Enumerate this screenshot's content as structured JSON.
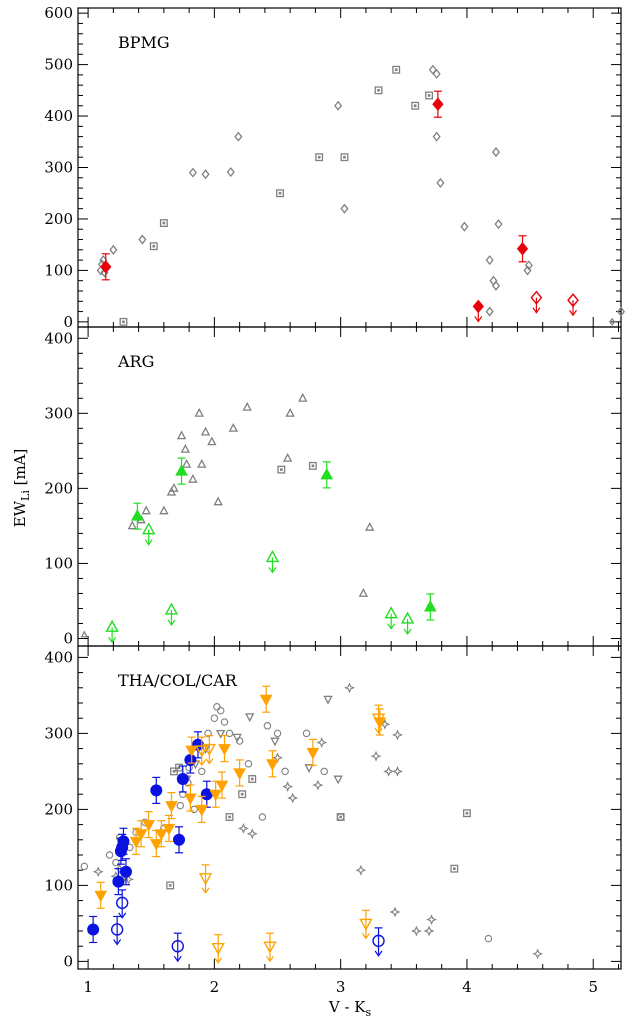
{
  "chart_data": {
    "type": "scatter",
    "xlabel": "V - K",
    "xlabel_sub": "s",
    "ylabel": "EW",
    "ylabel_sub": "Li",
    "ylabel_unit": " [mA]",
    "xlim": [
      0.92,
      5.22
    ],
    "x_ticks": [
      1,
      2,
      3,
      4,
      5
    ],
    "x_tick_labels": [
      "1",
      "2",
      "3",
      "4",
      "5"
    ],
    "grid": false,
    "colors": {
      "gray": "#808080",
      "red": "#e8000b",
      "green": "#22dd22",
      "orange": "#ffa200",
      "blue": "#0a12e0",
      "frame": "#000000"
    },
    "panels": [
      {
        "label": "BPMG",
        "ylim": [
          -10,
          610
        ],
        "y_ticks": [
          0,
          100,
          200,
          300,
          400,
          500,
          600
        ],
        "y_tick_labels": [
          "0",
          "100",
          "200",
          "300",
          "400",
          "500",
          "600"
        ],
        "series": [
          {
            "marker": "open-diamond",
            "color": "gray",
            "points": [
              [
                1.1,
                100
              ],
              [
                1.11,
                112
              ],
              [
                1.12,
                120
              ],
              [
                1.13,
                96
              ],
              [
                1.2,
                140
              ],
              [
                1.43,
                160
              ],
              [
                1.83,
                290
              ],
              [
                1.93,
                287
              ],
              [
                2.13,
                291
              ],
              [
                2.19,
                360
              ],
              [
                2.98,
                420
              ],
              [
                3.03,
                220
              ],
              [
                3.73,
                490
              ],
              [
                3.76,
                360
              ],
              [
                3.76,
                482
              ],
              [
                3.79,
                270
              ],
              [
                3.98,
                185
              ],
              [
                4.18,
                120
              ],
              [
                4.18,
                20
              ],
              [
                4.21,
                80
              ],
              [
                4.23,
                70
              ],
              [
                4.23,
                330
              ],
              [
                4.25,
                190
              ],
              [
                4.48,
                100
              ],
              [
                4.49,
                110
              ],
              [
                5.22,
                20
              ]
            ]
          },
          {
            "marker": "open-square-dot",
            "color": "gray",
            "points": [
              [
                1.28,
                0
              ],
              [
                1.52,
                147
              ],
              [
                1.6,
                192
              ],
              [
                2.52,
                250
              ],
              [
                2.83,
                320
              ],
              [
                3.03,
                320
              ],
              [
                3.3,
                450
              ],
              [
                3.44,
                490
              ],
              [
                3.59,
                420
              ],
              [
                3.7,
                440
              ]
            ]
          },
          {
            "marker": "open-diamond-small",
            "color": "gray",
            "points": [
              [
                5.15,
                0
              ]
            ]
          },
          {
            "marker": "filled-diamond",
            "color": "red",
            "error": true,
            "points": [
              [
                1.14,
                107
              ],
              [
                3.77,
                423
              ],
              [
                4.44,
                142
              ]
            ]
          },
          {
            "marker": "filled-diamond",
            "color": "red",
            "upper_limit": true,
            "points": [
              [
                4.09,
                30
              ]
            ]
          },
          {
            "marker": "open-diamond",
            "color": "red",
            "upper_limit": true,
            "points": [
              [
                4.55,
                47
              ],
              [
                4.84,
                42
              ]
            ]
          }
        ]
      },
      {
        "label": "ARG",
        "ylim": [
          -10,
          415
        ],
        "y_ticks": [
          0,
          100,
          200,
          300,
          400
        ],
        "y_tick_labels": [
          "0",
          "100",
          "200",
          "300",
          "400"
        ],
        "series": [
          {
            "marker": "open-triangle",
            "color": "gray",
            "points": [
              [
                1.35,
                150
              ],
              [
                1.42,
                158
              ],
              [
                1.46,
                170
              ],
              [
                1.6,
                170
              ],
              [
                1.66,
                195
              ],
              [
                1.68,
                200
              ],
              [
                1.74,
                270
              ],
              [
                1.77,
                252
              ],
              [
                1.78,
                232
              ],
              [
                1.83,
                212
              ],
              [
                1.88,
                300
              ],
              [
                1.9,
                232
              ],
              [
                1.93,
                275
              ],
              [
                1.98,
                262
              ],
              [
                2.03,
                182
              ],
              [
                2.15,
                280
              ],
              [
                2.26,
                308
              ],
              [
                2.58,
                240
              ],
              [
                2.6,
                300
              ],
              [
                2.7,
                320
              ],
              [
                3.18,
                60
              ],
              [
                3.23,
                148
              ]
            ]
          },
          {
            "marker": "open-square-dot",
            "color": "gray",
            "points": [
              [
                2.53,
                225
              ],
              [
                2.78,
                230
              ]
            ]
          },
          {
            "marker": "open-triangle-small",
            "color": "gray",
            "points": [
              [
                0.97,
                5
              ]
            ]
          },
          {
            "marker": "filled-triangle",
            "color": "green",
            "error": true,
            "points": [
              [
                1.39,
                163
              ],
              [
                1.74,
                223
              ],
              [
                2.89,
                218
              ],
              [
                3.71,
                42
              ]
            ]
          },
          {
            "marker": "open-triangle",
            "color": "green",
            "upper_limit": true,
            "points": [
              [
                1.19,
                15
              ],
              [
                1.48,
                145
              ],
              [
                1.66,
                38
              ],
              [
                2.46,
                108
              ],
              [
                3.4,
                33
              ],
              [
                3.53,
                26
              ]
            ]
          }
        ]
      },
      {
        "label": "THA/COL/CAR",
        "ylim": [
          -10,
          415
        ],
        "y_ticks": [
          0,
          100,
          200,
          300,
          400
        ],
        "y_tick_labels": [
          "0",
          "100",
          "200",
          "300",
          "400"
        ],
        "series": [
          {
            "marker": "open-circle",
            "color": "gray",
            "points": [
              [
                0.97,
                125
              ],
              [
                1.17,
                140
              ],
              [
                1.22,
                130
              ],
              [
                1.25,
                163
              ],
              [
                1.33,
                150
              ],
              [
                1.38,
                170
              ],
              [
                1.45,
                183
              ],
              [
                1.6,
                175
              ],
              [
                1.73,
                205
              ],
              [
                1.75,
                220
              ],
              [
                1.79,
                235
              ],
              [
                1.8,
                255
              ],
              [
                1.84,
                200
              ],
              [
                1.9,
                250
              ],
              [
                1.95,
                300
              ],
              [
                2.0,
                320
              ],
              [
                2.02,
                335
              ],
              [
                2.05,
                330
              ],
              [
                2.08,
                315
              ],
              [
                2.12,
                300
              ],
              [
                2.2,
                290
              ],
              [
                2.27,
                260
              ],
              [
                2.38,
                190
              ],
              [
                2.42,
                310
              ],
              [
                2.5,
                300
              ],
              [
                2.56,
                250
              ],
              [
                2.73,
                300
              ],
              [
                2.87,
                250
              ],
              [
                3.0,
                190
              ],
              [
                4.17,
                30
              ]
            ]
          },
          {
            "marker": "open-triangle-down",
            "color": "gray",
            "points": [
              [
                1.78,
                240
              ],
              [
                1.85,
                260
              ],
              [
                1.93,
                280
              ],
              [
                2.05,
                300
              ],
              [
                2.18,
                295
              ],
              [
                2.28,
                322
              ],
              [
                2.48,
                290
              ],
              [
                2.75,
                255
              ],
              [
                2.9,
                345
              ],
              [
                2.98,
                240
              ]
            ]
          },
          {
            "marker": "star4",
            "color": "gray",
            "points": [
              [
                1.08,
                118
              ],
              [
                1.22,
                112
              ],
              [
                1.25,
                122
              ],
              [
                1.28,
                108
              ],
              [
                1.32,
                108
              ],
              [
                2.23,
                175
              ],
              [
                2.3,
                168
              ],
              [
                2.5,
                268
              ],
              [
                2.58,
                230
              ],
              [
                2.62,
                215
              ],
              [
                2.82,
                232
              ],
              [
                2.85,
                288
              ],
              [
                3.07,
                360
              ],
              [
                3.16,
                120
              ],
              [
                3.28,
                270
              ],
              [
                3.35,
                312
              ],
              [
                3.38,
                250
              ],
              [
                3.43,
                65
              ],
              [
                3.45,
                298
              ],
              [
                3.45,
                250
              ],
              [
                3.6,
                40
              ],
              [
                3.7,
                40
              ],
              [
                3.72,
                55
              ],
              [
                4.56,
                10
              ]
            ]
          },
          {
            "marker": "open-square-dot",
            "color": "gray",
            "points": [
              [
                1.65,
                100
              ],
              [
                1.68,
                250
              ],
              [
                1.72,
                255
              ],
              [
                2.12,
                190
              ],
              [
                2.22,
                220
              ],
              [
                2.3,
                240
              ],
              [
                3.0,
                190
              ],
              [
                3.9,
                122
              ],
              [
                4.0,
                195
              ]
            ]
          },
          {
            "marker": "filled-circle",
            "color": "blue",
            "error": true,
            "points": [
              [
                1.04,
                42
              ],
              [
                1.24,
                105
              ],
              [
                1.26,
                145
              ],
              [
                1.27,
                150
              ],
              [
                1.28,
                158
              ],
              [
                1.3,
                118
              ],
              [
                1.54,
                225
              ],
              [
                1.72,
                160
              ],
              [
                1.75,
                240
              ],
              [
                1.81,
                265
              ],
              [
                1.87,
                285
              ],
              [
                1.94,
                220
              ]
            ]
          },
          {
            "marker": "open-circle",
            "color": "blue",
            "upper_limit": true,
            "error": true,
            "points": [
              [
                1.23,
                42
              ],
              [
                1.27,
                77
              ],
              [
                1.71,
                20
              ],
              [
                3.3,
                27
              ]
            ]
          },
          {
            "marker": "filled-triangle-down",
            "color": "orange",
            "error": true,
            "points": [
              [
                1.1,
                87
              ],
              [
                1.38,
                158
              ],
              [
                1.42,
                168
              ],
              [
                1.48,
                180
              ],
              [
                1.54,
                155
              ],
              [
                1.58,
                168
              ],
              [
                1.64,
                175
              ],
              [
                1.66,
                205
              ],
              [
                1.81,
                215
              ],
              [
                1.82,
                278
              ],
              [
                1.9,
                200
              ],
              [
                2.01,
                220
              ],
              [
                2.06,
                232
              ],
              [
                2.08,
                280
              ],
              [
                2.2,
                248
              ],
              [
                2.41,
                345
              ],
              [
                2.46,
                260
              ],
              [
                2.78,
                275
              ],
              [
                3.31,
                315
              ]
            ]
          },
          {
            "marker": "open-triangle-down",
            "color": "orange",
            "upper_limit": true,
            "error": true,
            "points": [
              [
                1.9,
                278
              ],
              [
                1.93,
                110
              ],
              [
                1.96,
                280
              ],
              [
                2.03,
                18
              ],
              [
                2.44,
                20
              ],
              [
                3.2,
                50
              ],
              [
                3.3,
                320
              ]
            ]
          }
        ]
      }
    ]
  }
}
